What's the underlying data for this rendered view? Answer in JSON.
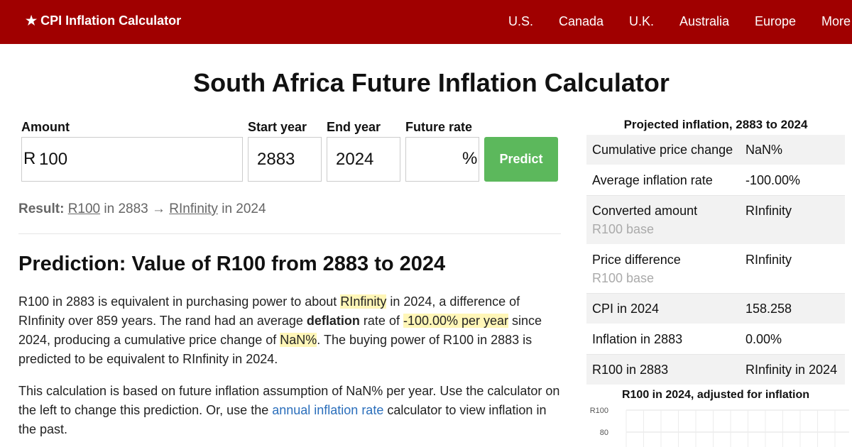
{
  "header": {
    "brand": "★ CPI Inflation Calculator",
    "nav": [
      "U.S.",
      "Canada",
      "U.K.",
      "Australia",
      "Europe",
      "More"
    ]
  },
  "page_title": "South Africa Future Inflation Calculator",
  "form": {
    "amount_label": "Amount",
    "currency": "R",
    "amount_value": "100",
    "start_label": "Start year",
    "start_value": "2883",
    "end_label": "End year",
    "end_value": "2024",
    "rate_label": "Future rate",
    "rate_value": "",
    "pct_symbol": "%",
    "predict_label": "Predict"
  },
  "result": {
    "label": "Result:",
    "from_amount": "R100",
    "from_mid": "in 2883 →",
    "to_amount": "RInfinity",
    "to_tail": "in 2024"
  },
  "prediction": {
    "heading": "Prediction: Value of R100 from 2883 to 2024",
    "p1_a": "R100 in 2883 is equivalent in purchasing power to about ",
    "p1_hl1": "RInfinity",
    "p1_b": " in 2024, a difference of RInfinity over 859 years. The rand had an average ",
    "p1_bold": "deflation",
    "p1_c": " rate of ",
    "p1_hl2": "-100.00% per year",
    "p1_d": " since 2024, producing a cumulative price change of ",
    "p1_hl3": "NaN%",
    "p1_e": ". The buying power of R100 in 2883 is predicted to be equivalent to RInfinity in 2024.",
    "p2_a": "This calculation is based on future inflation assumption of NaN% per year. Use the calculator on the left to change this prediction. Or, use the ",
    "p2_link": "annual inflation rate",
    "p2_b": " calculator to view inflation in the past."
  },
  "sidebar": {
    "title": "Projected inflation, 2883 to 2024",
    "rows": [
      {
        "key": "Cumulative price change",
        "sub": "",
        "value": "NaN%"
      },
      {
        "key": "Average inflation rate",
        "sub": "",
        "value": "-100.00%"
      },
      {
        "key": "Converted amount",
        "sub": "R100 base",
        "value": "RInfinity"
      },
      {
        "key": "Price difference",
        "sub": "R100 base",
        "value": "RInfinity"
      },
      {
        "key": "CPI in 2024",
        "sub": "",
        "value": "158.258"
      },
      {
        "key": "Inflation in 2883",
        "sub": "",
        "value": "0.00%"
      },
      {
        "key": "R100 in 2883",
        "sub": "",
        "value": "RInfinity in 2024"
      }
    ]
  },
  "chart_data": {
    "type": "line",
    "title": "R100 in 2024, adjusted for inflation",
    "y_ticks": [
      "R100",
      "80"
    ],
    "ylim": [
      0,
      100
    ],
    "series": [],
    "grid": true
  }
}
